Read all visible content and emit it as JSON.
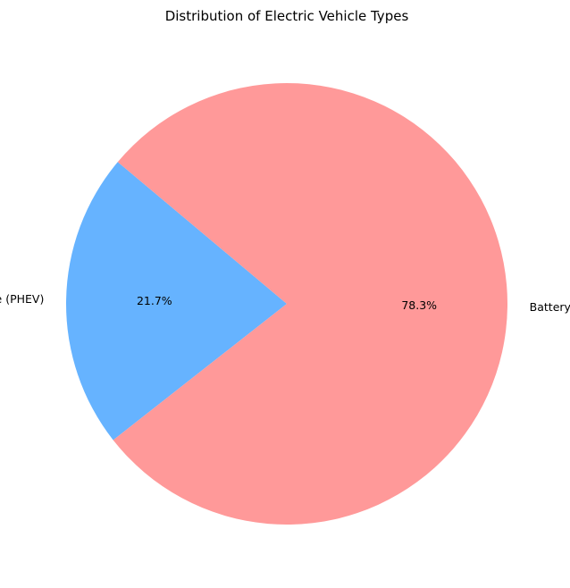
{
  "chart_data": {
    "type": "pie",
    "title": "Distribution of Electric Vehicle Types",
    "start_angle_deg": 140,
    "direction": "counterclockwise",
    "slices": [
      {
        "label": "Plug-in Hybrid Electric Vehicle (PHEV)",
        "value": 21.7,
        "pct_label": "21.7%",
        "color": "#66b3ff"
      },
      {
        "label": "Battery Electric Vehicle (BEV)",
        "value": 78.3,
        "pct_label": "78.3%",
        "color": "#ff9999"
      }
    ],
    "legend": "none"
  }
}
